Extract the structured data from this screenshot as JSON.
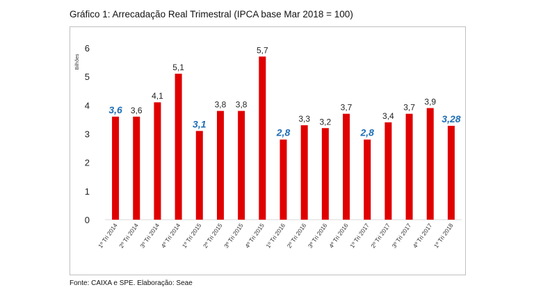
{
  "title": "Gráfico 1: Arrecadação Real Trimestral (IPCA base Mar 2018 = 100)",
  "source": "Fonte: CAIXA e SPE. Elaboração: Seae",
  "chart_data": {
    "type": "bar",
    "title": "Gráfico 1: Arrecadação Real Trimestral (IPCA base Mar 2018 = 100)",
    "ylabel": "Bilhões",
    "xlabel": "",
    "ylim": [
      0,
      6
    ],
    "yticks": [
      0,
      1,
      2,
      3,
      4,
      5,
      6
    ],
    "grid": false,
    "legend": "none",
    "bar_color": "#e00000",
    "highlight_label_color": "#1f6eb5",
    "categories": [
      "1º Tri 2014",
      "2º Tri 2014",
      "3º Tri 2014",
      "4º Tri 2014",
      "1º Tri 2015",
      "2º Tri 2015",
      "3º Tri 2015",
      "4º Tri 2015",
      "1º Tri 2016",
      "2º Tri 2016",
      "3º Tri 2016",
      "4º Tri 2016",
      "1º Tri 2017",
      "2º Tri 2017",
      "3º Tri 2017",
      "4º Tri 2017",
      "1º Tri 2018"
    ],
    "values": [
      3.6,
      3.6,
      4.1,
      5.1,
      3.1,
      3.8,
      3.8,
      5.7,
      2.8,
      3.3,
      3.2,
      3.7,
      2.8,
      3.4,
      3.7,
      3.9,
      3.28
    ],
    "data_labels": [
      "3,6",
      "3,6",
      "4,1",
      "5,1",
      "3,1",
      "3,8",
      "3,8",
      "5,7",
      "2,8",
      "3,3",
      "3,2",
      "3,7",
      "2,8",
      "3,4",
      "3,7",
      "3,9",
      "3,28"
    ],
    "highlighted": [
      true,
      false,
      false,
      false,
      true,
      false,
      false,
      false,
      true,
      false,
      false,
      false,
      true,
      false,
      false,
      false,
      true
    ]
  }
}
